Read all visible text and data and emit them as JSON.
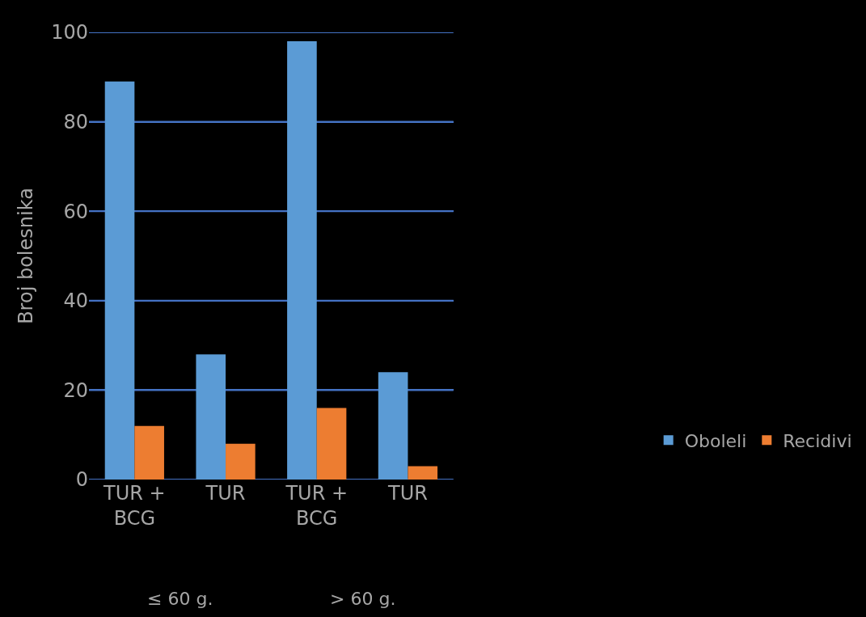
{
  "chart_data": {
    "type": "bar",
    "ylabel": "Broj bolesnika",
    "categories": [
      "TUR + BCG",
      "TUR",
      "TUR + BCG",
      "TUR"
    ],
    "series": [
      {
        "name": "Oboleli",
        "color": "#5b9bd5",
        "values": [
          89,
          28,
          98,
          24
        ]
      },
      {
        "name": "Recidivi",
        "color": "#ed7d31",
        "values": [
          12,
          8,
          16,
          3
        ]
      }
    ],
    "ylim": [
      0,
      100
    ],
    "yticks": [
      0,
      20,
      40,
      60,
      80,
      100
    ],
    "grid": "y",
    "legend": "right",
    "annotations": [
      "≤ 60 g.",
      "> 60 g."
    ]
  }
}
